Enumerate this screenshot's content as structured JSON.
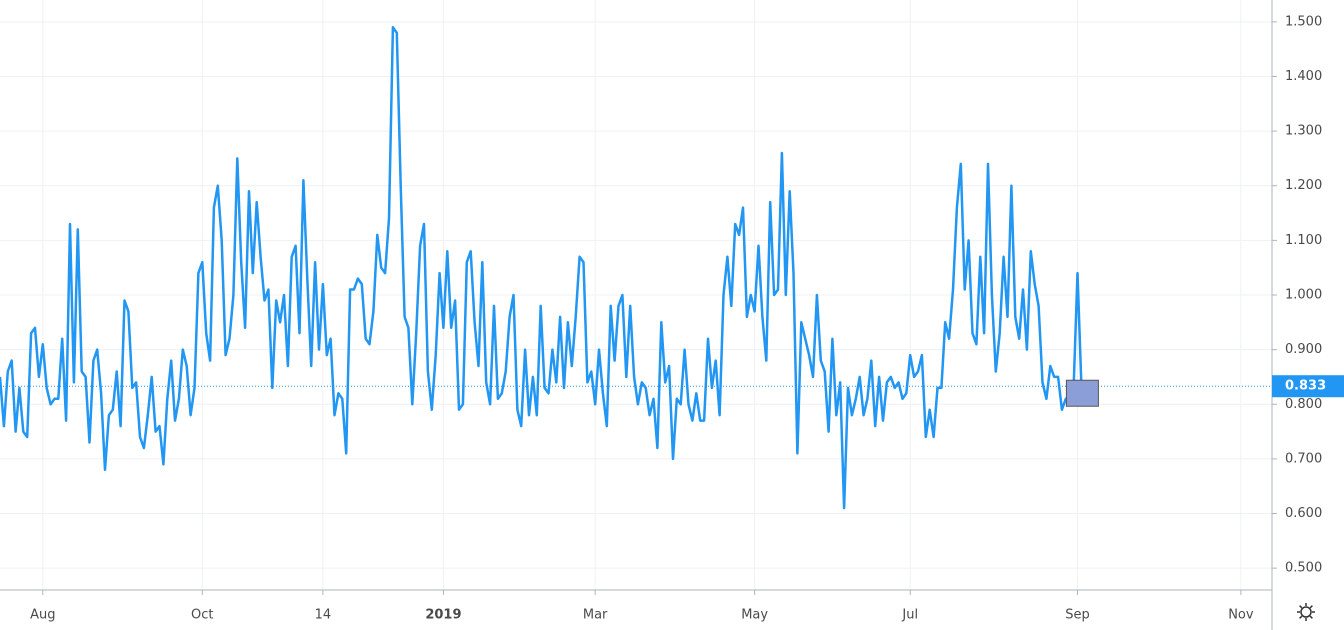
{
  "chart_data": {
    "type": "line",
    "series": [
      {
        "color": "#2196f3",
        "values": [
          0.85,
          0.76,
          0.86,
          0.88,
          0.75,
          0.83,
          0.75,
          0.74,
          0.93,
          0.94,
          0.85,
          0.91,
          0.83,
          0.8,
          0.81,
          0.81,
          0.92,
          0.77,
          1.13,
          0.84,
          1.12,
          0.86,
          0.85,
          0.73,
          0.88,
          0.9,
          0.82,
          0.68,
          0.78,
          0.79,
          0.86,
          0.76,
          0.99,
          0.97,
          0.83,
          0.84,
          0.74,
          0.72,
          0.78,
          0.85,
          0.75,
          0.76,
          0.69,
          0.81,
          0.88,
          0.77,
          0.81,
          0.9,
          0.87,
          0.78,
          0.83,
          1.04,
          1.06,
          0.93,
          0.88,
          1.16,
          1.2,
          1.1,
          0.89,
          0.92,
          1.0,
          1.25,
          1.06,
          0.94,
          1.19,
          1.04,
          1.17,
          1.07,
          0.99,
          1.01,
          0.83,
          0.99,
          0.95,
          1.0,
          0.87,
          1.07,
          1.09,
          0.93,
          1.21,
          1.03,
          0.87,
          1.06,
          0.9,
          1.02,
          0.89,
          0.92,
          0.78,
          0.82,
          0.81,
          0.71,
          1.01,
          1.01,
          1.03,
          1.02,
          0.92,
          0.91,
          0.97,
          1.11,
          1.05,
          1.04,
          1.14,
          1.49,
          1.48,
          1.2,
          0.96,
          0.94,
          0.8,
          0.93,
          1.09,
          1.13,
          0.86,
          0.79,
          0.89,
          1.04,
          0.94,
          1.08,
          0.94,
          0.99,
          0.79,
          0.8,
          1.06,
          1.08,
          0.95,
          0.87,
          1.06,
          0.84,
          0.8,
          0.98,
          0.81,
          0.82,
          0.86,
          0.96,
          1.0,
          0.79,
          0.76,
          0.9,
          0.78,
          0.85,
          0.78,
          0.98,
          0.83,
          0.82,
          0.9,
          0.84,
          0.96,
          0.83,
          0.95,
          0.87,
          0.96,
          1.07,
          1.06,
          0.84,
          0.86,
          0.8,
          0.9,
          0.82,
          0.76,
          0.98,
          0.88,
          0.98,
          1.0,
          0.85,
          0.98,
          0.85,
          0.8,
          0.84,
          0.83,
          0.78,
          0.81,
          0.72,
          0.95,
          0.84,
          0.87,
          0.7,
          0.81,
          0.8,
          0.9,
          0.8,
          0.77,
          0.82,
          0.77,
          0.77,
          0.92,
          0.83,
          0.88,
          0.78,
          1.0,
          1.07,
          0.98,
          1.13,
          1.11,
          1.16,
          0.96,
          1.0,
          0.97,
          1.09,
          0.96,
          0.88,
          1.17,
          1.0,
          1.01,
          1.26,
          1.0,
          1.19,
          1.04,
          0.71,
          0.95,
          0.92,
          0.89,
          0.85,
          1.0,
          0.88,
          0.86,
          0.75,
          0.92,
          0.78,
          0.84,
          0.61,
          0.83,
          0.78,
          0.81,
          0.85,
          0.78,
          0.81,
          0.88,
          0.76,
          0.85,
          0.77,
          0.84,
          0.85,
          0.83,
          0.84,
          0.81,
          0.82,
          0.89,
          0.85,
          0.86,
          0.89,
          0.74,
          0.79,
          0.74,
          0.83,
          0.83,
          0.95,
          0.92,
          1.01,
          1.16,
          1.24,
          1.01,
          1.1,
          0.93,
          0.91,
          1.07,
          0.93,
          1.24,
          1.0,
          0.86,
          0.93,
          1.07,
          0.96,
          1.2,
          0.96,
          0.92,
          1.01,
          0.9,
          1.08,
          1.02,
          0.98,
          0.84,
          0.81,
          0.87,
          0.85,
          0.85,
          0.79,
          0.81,
          0.8,
          0.83,
          1.04,
          0.833
        ]
      }
    ],
    "xlim": [
      0,
      327
    ],
    "xticks": [
      {
        "value": 11,
        "label": "Aug"
      },
      {
        "value": 52,
        "label": "Oct"
      },
      {
        "value": 83,
        "label": "14"
      },
      {
        "value": 114,
        "label": "2019"
      },
      {
        "value": 153,
        "label": "Mar"
      },
      {
        "value": 194,
        "label": "May"
      },
      {
        "value": 234,
        "label": "Jul"
      },
      {
        "value": 277,
        "label": "Sep"
      },
      {
        "value": 319,
        "label": "Nov"
      }
    ],
    "ylim": [
      0.46,
      1.54
    ],
    "yticks": [
      {
        "value": 0.5,
        "label": "0.500"
      },
      {
        "value": 0.6,
        "label": "0.600"
      },
      {
        "value": 0.7,
        "label": "0.700"
      },
      {
        "value": 0.8,
        "label": "0.800"
      },
      {
        "value": 0.9,
        "label": "0.900"
      },
      {
        "value": 1.0,
        "label": "1.000"
      },
      {
        "value": 1.1,
        "label": "1.100"
      },
      {
        "value": 1.2,
        "label": "1.200"
      },
      {
        "value": 1.3,
        "label": "1.300"
      },
      {
        "value": 1.4,
        "label": "1.400"
      },
      {
        "value": 1.5,
        "label": "1.500"
      }
    ],
    "grid": true
  }
}
